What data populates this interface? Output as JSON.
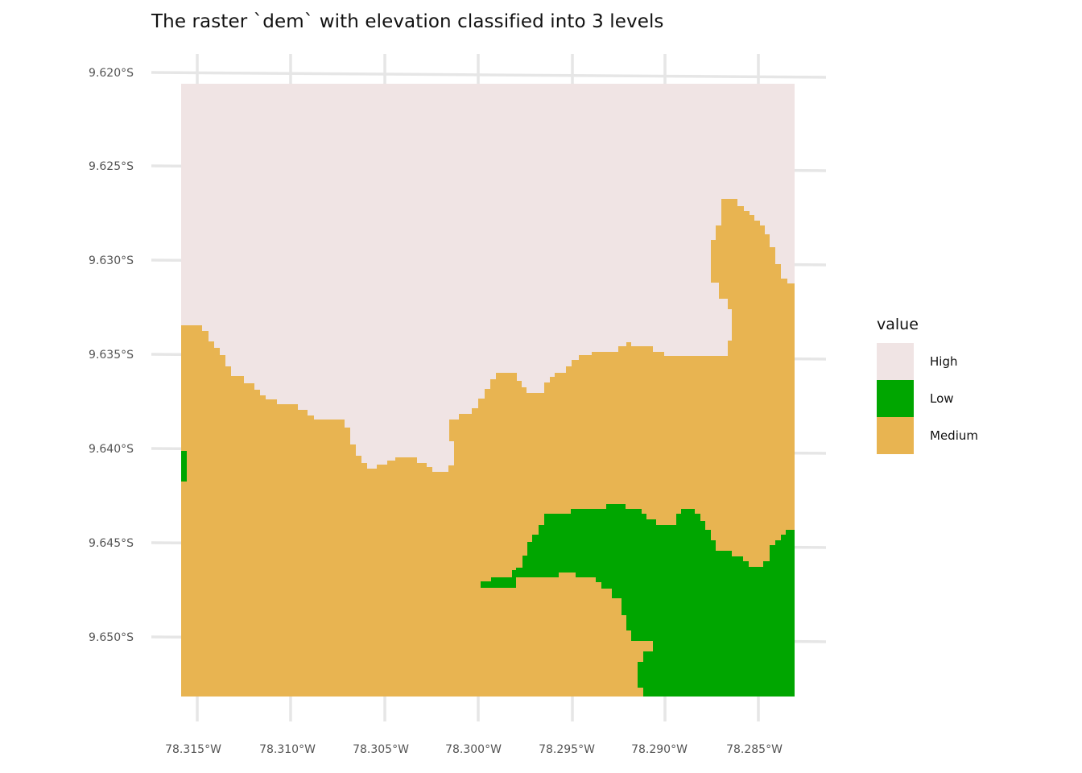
{
  "chart_data": {
    "type": "heatmap",
    "title": "The raster `dem` with elevation classified into 3 levels",
    "x_ticks": [
      "78.315°W",
      "78.310°W",
      "78.305°W",
      "78.300°W",
      "78.295°W",
      "78.290°W",
      "78.285°W"
    ],
    "y_ticks": [
      "9.620°S",
      "9.625°S",
      "9.630°S",
      "9.635°S",
      "9.640°S",
      "9.645°S",
      "9.650°S"
    ],
    "xlim": [
      -78.3165,
      -78.2829
    ],
    "ylim": [
      -9.6527,
      -9.6201
    ],
    "grid": true,
    "legend": {
      "title": "value",
      "position": "right",
      "entries": [
        {
          "label": "High",
          "color": "#f0e4e4"
        },
        {
          "label": "Low",
          "color": "#00a600"
        },
        {
          "label": "Medium",
          "color": "#e8b451"
        }
      ]
    },
    "classes": {
      "High": "#f0e4e4",
      "Low": "#00a600",
      "Medium": "#e8b451"
    }
  }
}
